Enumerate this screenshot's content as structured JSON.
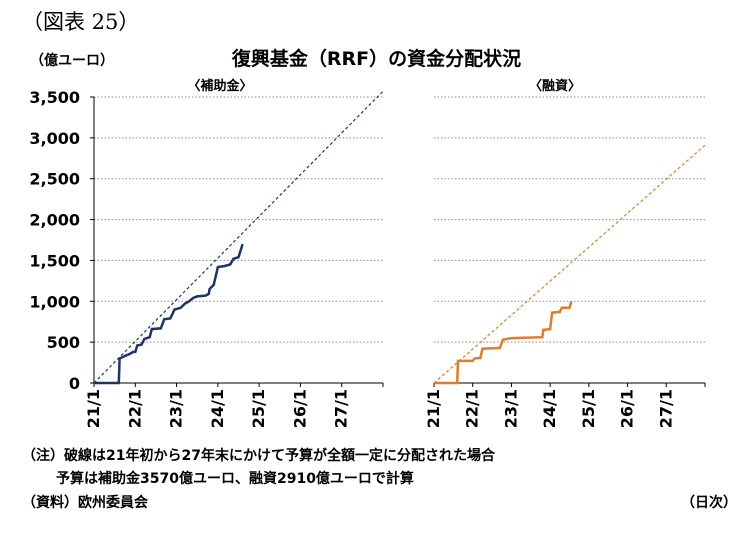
{
  "figure_label": "（図表 25）",
  "unit_label": "（億ユーロ）",
  "main_title": "復興基金（RRF）の資金分配状況",
  "notes": [
    "（注）破線は21年初から27年末にかけて予算が全額一定に分配された場合",
    "予算は補助金3570億ユーロ、融資2910億ユーロで計算"
  ],
  "source": "（資料）欧州委員会",
  "x_unit": "（日次）",
  "colors": {
    "grant": "#1f3464",
    "loan": "#e07c2a",
    "grid": "#8c8c8c"
  },
  "chart_data": [
    {
      "type": "line",
      "subtitle": "〈補助金〉",
      "x_tick_labels": [
        "21/1",
        "22/1",
        "23/1",
        "24/1",
        "25/1",
        "26/1",
        "27/1"
      ],
      "y_tick_labels": [
        "0",
        "500",
        "1,000",
        "1,500",
        "2,000",
        "2,500",
        "3,000",
        "3,500"
      ],
      "ylim": [
        0,
        3500
      ],
      "xlim": [
        2021.0,
        2028.0
      ],
      "grid": "horizontal dotted",
      "series": [
        {
          "style": "solid",
          "points": [
            [
              2021.0,
              0
            ],
            [
              2021.6,
              0
            ],
            [
              2021.62,
              300
            ],
            [
              2021.75,
              330
            ],
            [
              2021.88,
              360
            ],
            [
              2021.95,
              380
            ],
            [
              2022.0,
              380
            ],
            [
              2022.05,
              460
            ],
            [
              2022.15,
              470
            ],
            [
              2022.22,
              540
            ],
            [
              2022.35,
              560
            ],
            [
              2022.4,
              660
            ],
            [
              2022.62,
              670
            ],
            [
              2022.7,
              780
            ],
            [
              2022.85,
              790
            ],
            [
              2022.95,
              900
            ],
            [
              2023.1,
              920
            ],
            [
              2023.2,
              970
            ],
            [
              2023.3,
              1000
            ],
            [
              2023.4,
              1040
            ],
            [
              2023.5,
              1060
            ],
            [
              2023.7,
              1070
            ],
            [
              2023.78,
              1090
            ],
            [
              2023.8,
              1150
            ],
            [
              2023.9,
              1200
            ],
            [
              2024.0,
              1420
            ],
            [
              2024.15,
              1430
            ],
            [
              2024.3,
              1450
            ],
            [
              2024.38,
              1520
            ],
            [
              2024.5,
              1540
            ],
            [
              2024.55,
              1620
            ],
            [
              2024.6,
              1700
            ]
          ]
        },
        {
          "style": "dashed",
          "points": [
            [
              2021.0,
              0
            ],
            [
              2028.0,
              3570
            ]
          ]
        }
      ]
    },
    {
      "type": "line",
      "subtitle": "〈融資〉",
      "x_tick_labels": [
        "21/1",
        "22/1",
        "23/1",
        "24/1",
        "25/1",
        "26/1",
        "27/1"
      ],
      "ylim": [
        0,
        3500
      ],
      "xlim": [
        2021.0,
        2028.0
      ],
      "grid": "horizontal dotted",
      "series": [
        {
          "style": "solid",
          "points": [
            [
              2021.0,
              0
            ],
            [
              2021.6,
              0
            ],
            [
              2021.62,
              270
            ],
            [
              2022.0,
              270
            ],
            [
              2022.05,
              300
            ],
            [
              2022.2,
              310
            ],
            [
              2022.25,
              420
            ],
            [
              2022.7,
              430
            ],
            [
              2022.78,
              530
            ],
            [
              2023.0,
              550
            ],
            [
              2023.8,
              560
            ],
            [
              2023.82,
              650
            ],
            [
              2024.0,
              660
            ],
            [
              2024.05,
              860
            ],
            [
              2024.25,
              870
            ],
            [
              2024.3,
              920
            ],
            [
              2024.5,
              920
            ],
            [
              2024.55,
              1000
            ]
          ]
        },
        {
          "style": "dashed",
          "points": [
            [
              2021.0,
              0
            ],
            [
              2028.0,
              2910
            ]
          ]
        }
      ]
    }
  ]
}
